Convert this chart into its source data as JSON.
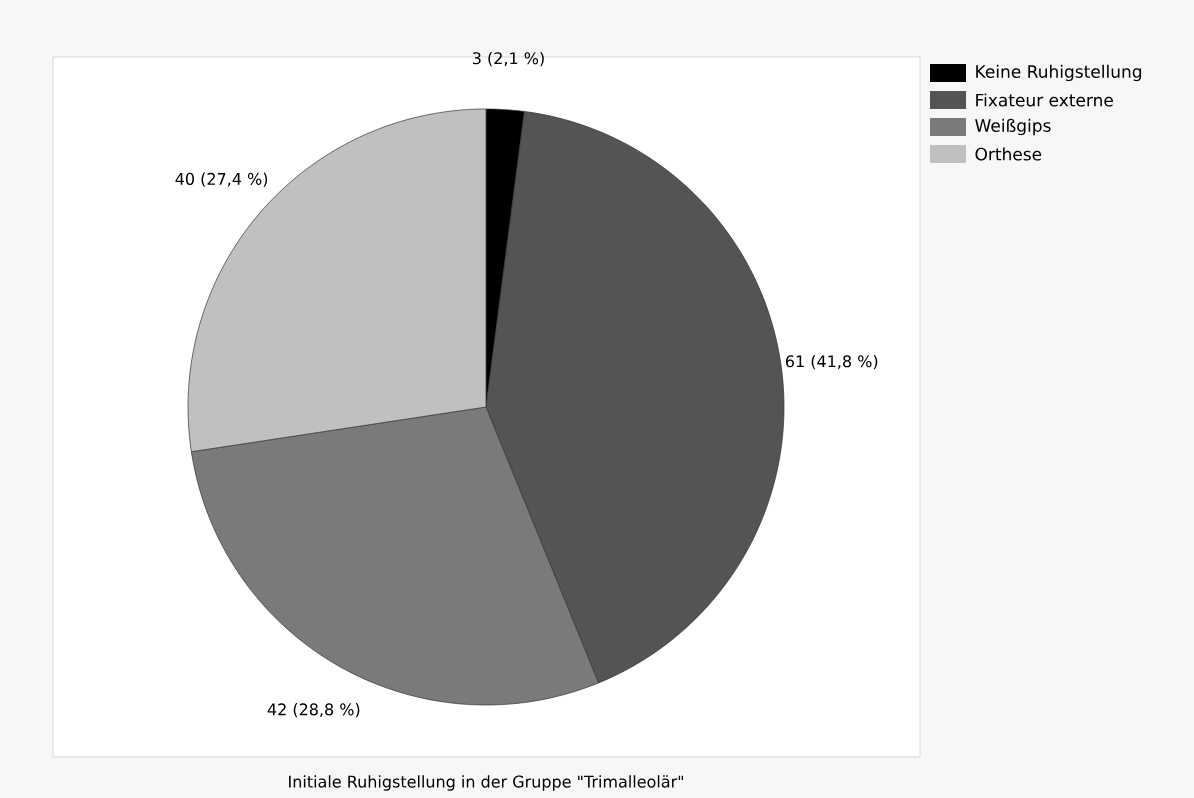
{
  "chart_data": {
    "type": "pie",
    "title": "Initiale Ruhigstellung in der Gruppe \"Trimalleolär\"",
    "categories": [
      "Keine Ruhigstellung",
      "Fixateur externe",
      "Weißgips",
      "Orthese"
    ],
    "values": [
      3,
      61,
      42,
      40
    ],
    "colors": [
      "#000000",
      "#545454",
      "#7a7a7a",
      "#c0c0c0"
    ],
    "value_labels": [
      "3 (2,1 %)",
      "61 (41,8 %)",
      "42 (28,8 %)",
      "40 (27,4 %)"
    ],
    "legend": "top right"
  }
}
